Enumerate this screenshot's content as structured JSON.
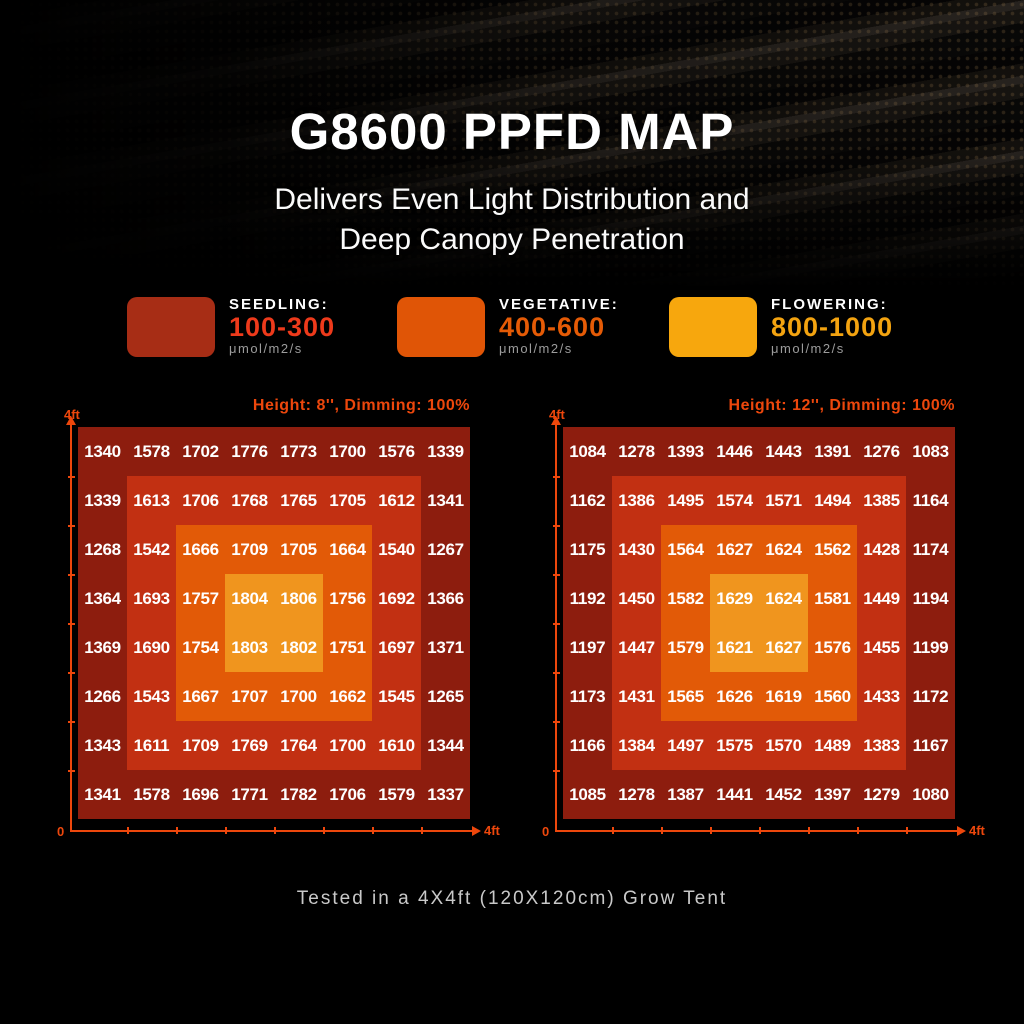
{
  "colors": {
    "accent": "#ED470C",
    "zone_outer": "#8D1D0E",
    "zone_mid": "#C23012",
    "zone_inner": "#E25A07",
    "zone_center": "#F0951E"
  },
  "header": {
    "title": "G8600 PPFD MAP",
    "subtitle_line1": "Delivers Even Light Distribution and",
    "subtitle_line2": "Deep Canopy Penetration"
  },
  "legend": {
    "items": [
      {
        "stage": "SEEDLING:",
        "range": "100-300",
        "unit": "μmol/m2/s",
        "swatch_color": "#A72D15",
        "range_color": "#EE3A1B"
      },
      {
        "stage": "VEGETATIVE:",
        "range": "400-600",
        "unit": "μmol/m2/s",
        "swatch_color": "#E05506",
        "range_color": "#E55B06"
      },
      {
        "stage": "FLOWERING:",
        "range": "800-1000",
        "unit": "μmol/m2/s",
        "swatch_color": "#F7A70D",
        "range_color": "#F3A310"
      }
    ]
  },
  "footer": {
    "caption": "Tested in a 4X4ft (120X120cm) Grow Tent"
  },
  "chart_data": [
    {
      "type": "heatmap",
      "title": "Height: 8'', Dimming: 100%",
      "xlabel": "",
      "ylabel": "",
      "x_axis": {
        "origin_label": "0",
        "max_label": "4ft"
      },
      "y_axis": {
        "max_label": "4ft"
      },
      "grid": "8x8 over 4ft x 4ft",
      "values": [
        [
          1340,
          1578,
          1702,
          1776,
          1773,
          1700,
          1576,
          1339
        ],
        [
          1339,
          1613,
          1706,
          1768,
          1765,
          1705,
          1612,
          1341
        ],
        [
          1268,
          1542,
          1666,
          1709,
          1705,
          1664,
          1540,
          1267
        ],
        [
          1364,
          1693,
          1757,
          1804,
          1806,
          1756,
          1692,
          1366
        ],
        [
          1369,
          1690,
          1754,
          1803,
          1802,
          1751,
          1697,
          1371
        ],
        [
          1266,
          1543,
          1667,
          1707,
          1700,
          1662,
          1545,
          1265
        ],
        [
          1343,
          1611,
          1709,
          1769,
          1764,
          1700,
          1610,
          1344
        ],
        [
          1341,
          1578,
          1696,
          1771,
          1782,
          1706,
          1579,
          1337
        ]
      ]
    },
    {
      "type": "heatmap",
      "title": "Height: 12'', Dimming: 100%",
      "xlabel": "",
      "ylabel": "",
      "x_axis": {
        "origin_label": "0",
        "max_label": "4ft"
      },
      "y_axis": {
        "max_label": "4ft"
      },
      "grid": "8x8 over 4ft x 4ft",
      "values": [
        [
          1084,
          1278,
          1393,
          1446,
          1443,
          1391,
          1276,
          1083
        ],
        [
          1162,
          1386,
          1495,
          1574,
          1571,
          1494,
          1385,
          1164
        ],
        [
          1175,
          1430,
          1564,
          1627,
          1624,
          1562,
          1428,
          1174
        ],
        [
          1192,
          1450,
          1582,
          1629,
          1624,
          1581,
          1449,
          1194
        ],
        [
          1197,
          1447,
          1579,
          1621,
          1627,
          1576,
          1455,
          1199
        ],
        [
          1173,
          1431,
          1565,
          1626,
          1619,
          1560,
          1433,
          1172
        ],
        [
          1166,
          1384,
          1497,
          1575,
          1570,
          1489,
          1383,
          1167
        ],
        [
          1085,
          1278,
          1387,
          1441,
          1452,
          1397,
          1279,
          1080
        ]
      ]
    }
  ]
}
